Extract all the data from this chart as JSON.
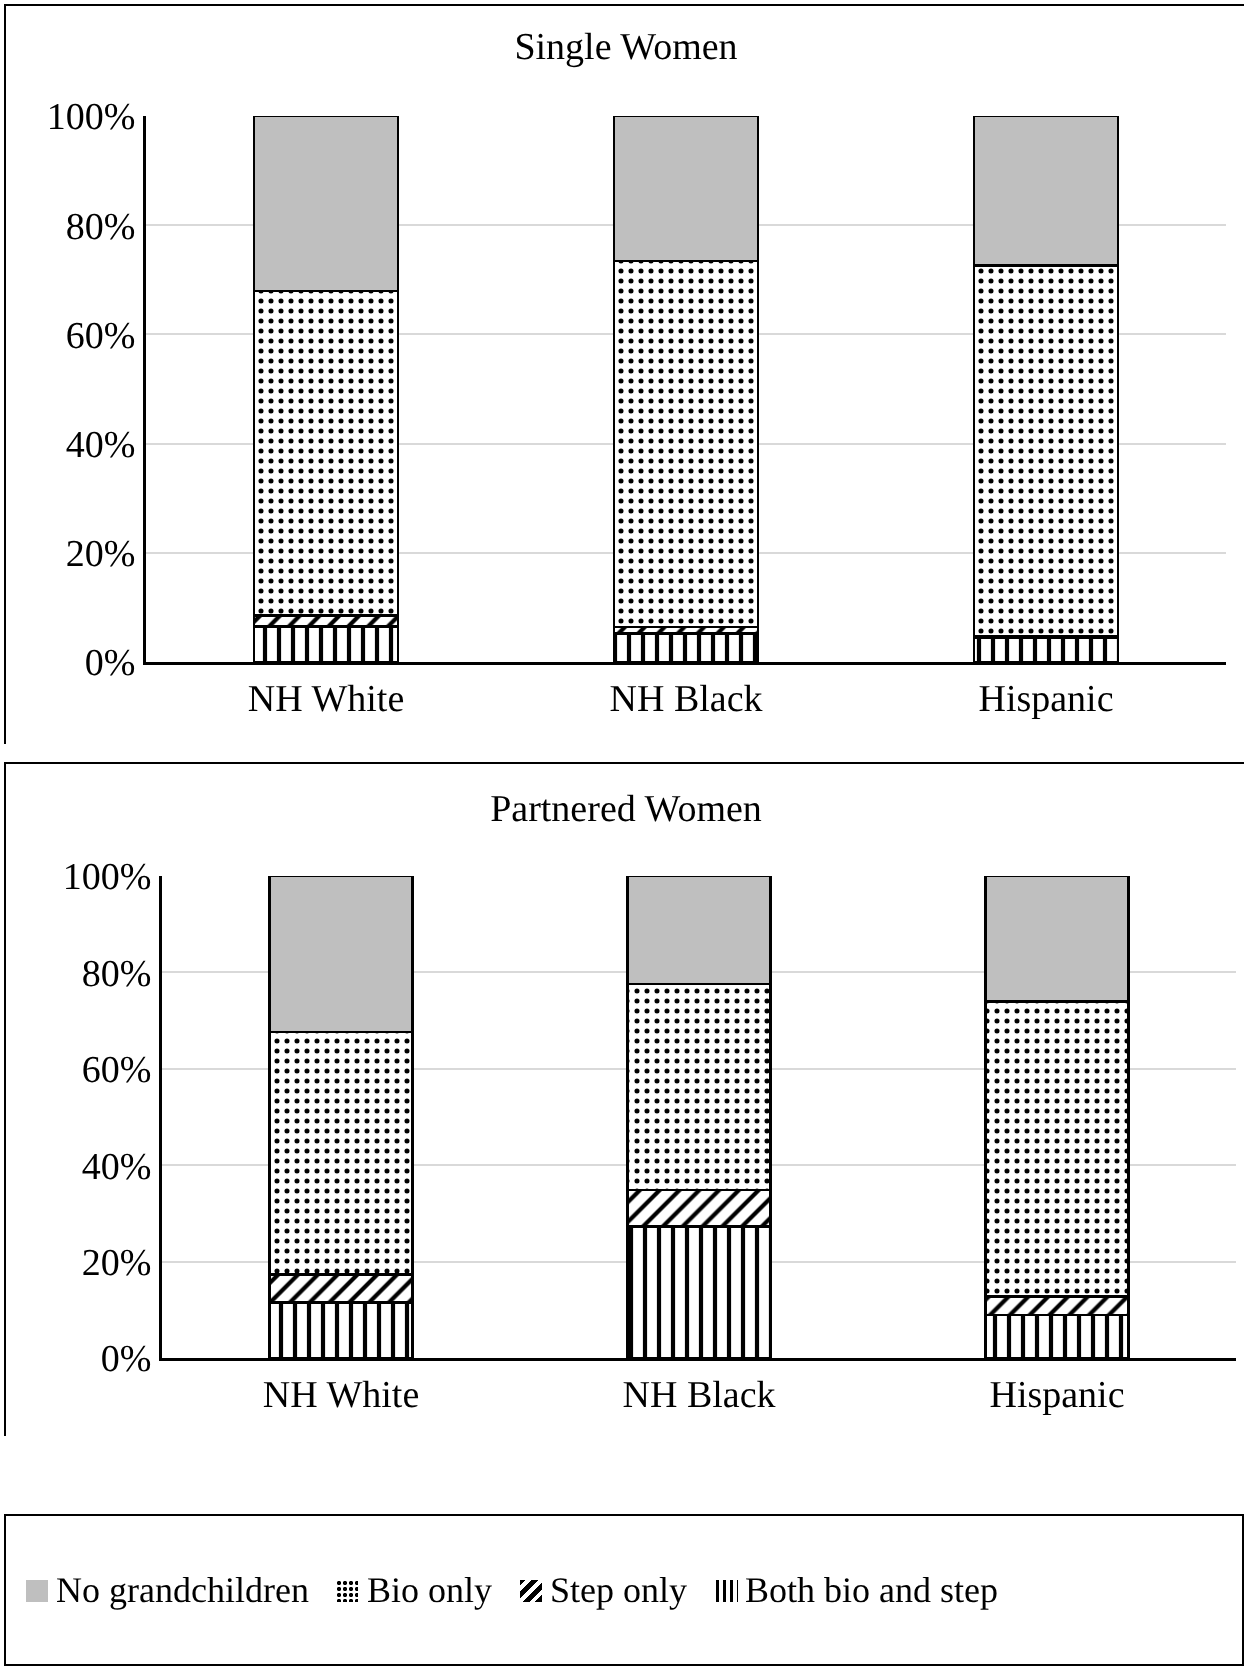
{
  "chart_data": [
    {
      "type": "bar",
      "title": "Single Women",
      "stacked": true,
      "categories": [
        "NH White",
        "NH Black",
        "Hispanic"
      ],
      "ylim": [
        0,
        100
      ],
      "yticks": [
        {
          "value": 0,
          "label": "0%"
        },
        {
          "value": 20,
          "label": "20%"
        },
        {
          "value": 40,
          "label": "40%"
        },
        {
          "value": 60,
          "label": "60%"
        },
        {
          "value": 80,
          "label": "80%"
        },
        {
          "value": 100,
          "label": "100%"
        }
      ],
      "grid": "y",
      "legend": false,
      "series": [
        {
          "color": "#000000",
          "values": [
            6.5,
            5.2,
            4.5
          ]
        },
        {
          "color": "#000000",
          "values": [
            2,
            1.2,
            0.3
          ]
        },
        {
          "color": "#000000",
          "values": [
            59.5,
            67,
            67.8
          ]
        },
        {
          "color": "#bfbfbf",
          "values": [
            32,
            26.6,
            27.4
          ]
        }
      ]
    },
    {
      "type": "bar",
      "title": "Partnered Women",
      "stacked": true,
      "categories": [
        "NH White",
        "NH Black",
        "Hispanic"
      ],
      "ylim": [
        0,
        100
      ],
      "yticks": [
        {
          "value": 0,
          "label": "0%"
        },
        {
          "value": 20,
          "label": "20%"
        },
        {
          "value": 40,
          "label": "40%"
        },
        {
          "value": 60,
          "label": "60%"
        },
        {
          "value": 80,
          "label": "80%"
        },
        {
          "value": 100,
          "label": "100%"
        }
      ],
      "grid": "y",
      "legend": "bottom",
      "series": [
        {
          "name": "Both bio and step",
          "color": "#000000",
          "values": [
            11.5,
            27.3,
            8.9
          ]
        },
        {
          "name": "Step only",
          "color": "#000000",
          "values": [
            5.8,
            7.6,
            3.9
          ]
        },
        {
          "name": "Bio only",
          "color": "#000000",
          "values": [
            50.3,
            42.7,
            61.2
          ]
        },
        {
          "name": "No grandchildren",
          "color": "#bfbfbf",
          "values": [
            32.4,
            22.4,
            26
          ]
        }
      ]
    }
  ]
}
